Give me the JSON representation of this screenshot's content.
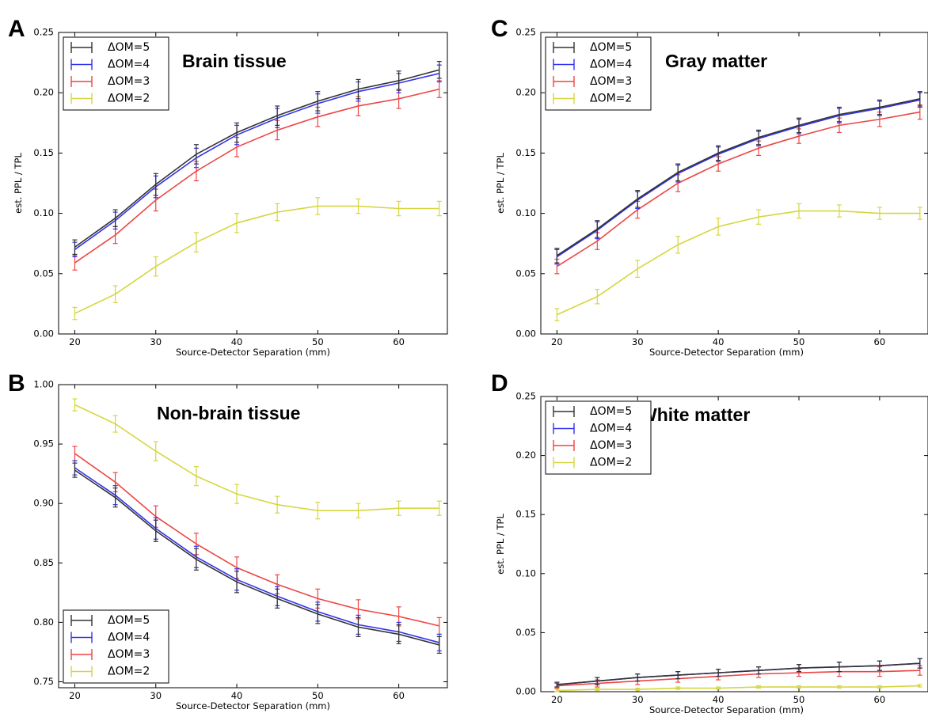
{
  "chart_data": [
    {
      "type": "line",
      "panel_letter": "A",
      "title": "Brain tissue",
      "xlabel": "Source-Detector Separation (mm)",
      "ylabel": "est. PPL / TPL",
      "x": [
        20,
        25,
        30,
        35,
        40,
        45,
        50,
        55,
        60,
        65
      ],
      "xticks": [
        20,
        30,
        40,
        50,
        60
      ],
      "xlim": [
        18,
        66
      ],
      "ylim": [
        0.0,
        0.25
      ],
      "yticks": [
        0.0,
        0.05,
        0.1,
        0.15,
        0.2,
        0.25
      ],
      "ytick_labels": [
        "0.00",
        "0.05",
        "0.10",
        "0.15",
        "0.20",
        "0.25"
      ],
      "grid": false,
      "legend_position": "upper-left",
      "series": [
        {
          "name": "ΔOM=5",
          "color": "#333333",
          "values": [
            0.072,
            0.096,
            0.124,
            0.149,
            0.167,
            0.181,
            0.193,
            0.203,
            0.21,
            0.219
          ],
          "errors": [
            0.006,
            0.007,
            0.009,
            0.008,
            0.008,
            0.008,
            0.008,
            0.008,
            0.008,
            0.007
          ]
        },
        {
          "name": "ΔOM=4",
          "color": "#3333ee",
          "values": [
            0.07,
            0.094,
            0.122,
            0.146,
            0.165,
            0.179,
            0.191,
            0.201,
            0.208,
            0.216
          ],
          "errors": [
            0.006,
            0.007,
            0.009,
            0.008,
            0.008,
            0.008,
            0.008,
            0.008,
            0.008,
            0.007
          ]
        },
        {
          "name": "ΔOM=3",
          "color": "#ee4444",
          "values": [
            0.059,
            0.082,
            0.111,
            0.135,
            0.155,
            0.169,
            0.18,
            0.189,
            0.195,
            0.203
          ],
          "errors": [
            0.006,
            0.007,
            0.009,
            0.008,
            0.008,
            0.008,
            0.008,
            0.008,
            0.008,
            0.007
          ]
        },
        {
          "name": "ΔOM=2",
          "color": "#d6d640",
          "values": [
            0.017,
            0.033,
            0.056,
            0.076,
            0.092,
            0.101,
            0.106,
            0.106,
            0.104,
            0.104
          ],
          "errors": [
            0.005,
            0.007,
            0.008,
            0.008,
            0.008,
            0.007,
            0.007,
            0.006,
            0.006,
            0.006
          ]
        }
      ]
    },
    {
      "type": "line",
      "panel_letter": "B",
      "title": "Non-brain tissue",
      "xlabel": "Source-Detector Separation (mm)",
      "ylabel": "",
      "x": [
        20,
        25,
        30,
        35,
        40,
        45,
        50,
        55,
        60,
        65
      ],
      "xticks": [
        20,
        30,
        40,
        50,
        60
      ],
      "xlim": [
        18,
        66
      ],
      "ylim": [
        0.745,
        1.0
      ],
      "yticks": [
        0.75,
        0.8,
        0.85,
        0.9,
        0.95,
        1.0
      ],
      "ytick_labels": [
        "0.75",
        "0.80",
        "0.85",
        "0.90",
        "0.95",
        "1.00"
      ],
      "grid": false,
      "legend_position": "lower-left",
      "series": [
        {
          "name": "ΔOM=5",
          "color": "#333333",
          "values": [
            0.928,
            0.905,
            0.877,
            0.853,
            0.834,
            0.82,
            0.807,
            0.796,
            0.79,
            0.781
          ],
          "errors": [
            0.006,
            0.008,
            0.009,
            0.009,
            0.009,
            0.008,
            0.008,
            0.008,
            0.008,
            0.007
          ]
        },
        {
          "name": "ΔOM=4",
          "color": "#3333ee",
          "values": [
            0.93,
            0.907,
            0.879,
            0.855,
            0.836,
            0.822,
            0.809,
            0.798,
            0.792,
            0.783
          ],
          "errors": [
            0.006,
            0.008,
            0.009,
            0.009,
            0.009,
            0.008,
            0.008,
            0.008,
            0.008,
            0.007
          ]
        },
        {
          "name": "ΔOM=3",
          "color": "#ee4444",
          "values": [
            0.942,
            0.918,
            0.889,
            0.866,
            0.846,
            0.832,
            0.82,
            0.811,
            0.805,
            0.797
          ],
          "errors": [
            0.006,
            0.008,
            0.009,
            0.009,
            0.009,
            0.008,
            0.008,
            0.008,
            0.008,
            0.007
          ]
        },
        {
          "name": "ΔOM=2",
          "color": "#d6d640",
          "values": [
            0.983,
            0.967,
            0.944,
            0.923,
            0.908,
            0.899,
            0.894,
            0.894,
            0.896,
            0.896
          ],
          "errors": [
            0.005,
            0.007,
            0.008,
            0.008,
            0.008,
            0.007,
            0.007,
            0.006,
            0.006,
            0.006
          ]
        }
      ]
    },
    {
      "type": "line",
      "panel_letter": "C",
      "title": "Gray matter",
      "xlabel": "Source-Detector Separation (mm)",
      "ylabel": "est. PPL / TPL",
      "x": [
        20,
        25,
        30,
        35,
        40,
        45,
        50,
        55,
        60,
        65
      ],
      "xticks": [
        20,
        30,
        40,
        50,
        60
      ],
      "xlim": [
        18,
        66
      ],
      "ylim": [
        0.0,
        0.25
      ],
      "yticks": [
        0.0,
        0.05,
        0.1,
        0.15,
        0.2,
        0.25
      ],
      "ytick_labels": [
        "0.00",
        "0.05",
        "0.10",
        "0.15",
        "0.20",
        "0.25"
      ],
      "grid": false,
      "legend_position": "upper-left",
      "series": [
        {
          "name": "ΔOM=5",
          "color": "#333333",
          "values": [
            0.065,
            0.087,
            0.112,
            0.134,
            0.15,
            0.163,
            0.173,
            0.182,
            0.188,
            0.195
          ],
          "errors": [
            0.006,
            0.007,
            0.007,
            0.007,
            0.006,
            0.006,
            0.006,
            0.006,
            0.006,
            0.006
          ]
        },
        {
          "name": "ΔOM=4",
          "color": "#3333ee",
          "values": [
            0.064,
            0.086,
            0.111,
            0.133,
            0.149,
            0.162,
            0.172,
            0.181,
            0.187,
            0.194
          ],
          "errors": [
            0.006,
            0.007,
            0.007,
            0.007,
            0.006,
            0.006,
            0.006,
            0.006,
            0.006,
            0.006
          ]
        },
        {
          "name": "ΔOM=3",
          "color": "#ee4444",
          "values": [
            0.056,
            0.077,
            0.103,
            0.125,
            0.141,
            0.154,
            0.164,
            0.173,
            0.178,
            0.184
          ],
          "errors": [
            0.006,
            0.007,
            0.007,
            0.007,
            0.006,
            0.006,
            0.006,
            0.006,
            0.006,
            0.006
          ]
        },
        {
          "name": "ΔOM=2",
          "color": "#d6d640",
          "values": [
            0.016,
            0.031,
            0.054,
            0.074,
            0.089,
            0.097,
            0.102,
            0.102,
            0.1,
            0.1
          ],
          "errors": [
            0.005,
            0.006,
            0.007,
            0.007,
            0.007,
            0.006,
            0.006,
            0.005,
            0.005,
            0.005
          ]
        }
      ]
    },
    {
      "type": "line",
      "panel_letter": "D",
      "title": "White matter",
      "xlabel": "Source-Detector Separation (mm)",
      "ylabel": "est. PPL / TPL",
      "x": [
        20,
        25,
        30,
        35,
        40,
        45,
        50,
        55,
        60,
        65
      ],
      "xticks": [
        20,
        30,
        40,
        50,
        60
      ],
      "xlim": [
        18,
        66
      ],
      "ylim": [
        0.0,
        0.25
      ],
      "yticks": [
        0.0,
        0.05,
        0.1,
        0.15,
        0.2,
        0.25
      ],
      "ytick_labels": [
        "0.00",
        "0.05",
        "0.10",
        "0.15",
        "0.20",
        "0.25"
      ],
      "grid": false,
      "legend_position": "upper-left",
      "series": [
        {
          "name": "ΔOM=5",
          "color": "#333333",
          "values": [
            0.006,
            0.009,
            0.012,
            0.014,
            0.016,
            0.018,
            0.02,
            0.021,
            0.022,
            0.024
          ],
          "errors": [
            0.002,
            0.003,
            0.003,
            0.003,
            0.003,
            0.003,
            0.003,
            0.004,
            0.004,
            0.004
          ]
        },
        {
          "name": "ΔOM=4",
          "color": "#3333ee",
          "values": [
            0.006,
            0.009,
            0.012,
            0.014,
            0.016,
            0.018,
            0.02,
            0.021,
            0.022,
            0.024
          ],
          "errors": [
            0.002,
            0.003,
            0.003,
            0.003,
            0.003,
            0.003,
            0.003,
            0.004,
            0.004,
            0.004
          ]
        },
        {
          "name": "ΔOM=3",
          "color": "#ee4444",
          "values": [
            0.005,
            0.007,
            0.009,
            0.011,
            0.013,
            0.015,
            0.016,
            0.017,
            0.017,
            0.018
          ],
          "errors": [
            0.002,
            0.003,
            0.003,
            0.003,
            0.003,
            0.003,
            0.003,
            0.004,
            0.004,
            0.004
          ]
        },
        {
          "name": "ΔOM=2",
          "color": "#d6d640",
          "values": [
            0.001,
            0.002,
            0.002,
            0.003,
            0.003,
            0.004,
            0.004,
            0.004,
            0.004,
            0.005
          ],
          "errors": [
            0.001,
            0.001,
            0.001,
            0.001,
            0.001,
            0.001,
            0.001,
            0.001,
            0.001,
            0.001
          ]
        }
      ]
    }
  ]
}
